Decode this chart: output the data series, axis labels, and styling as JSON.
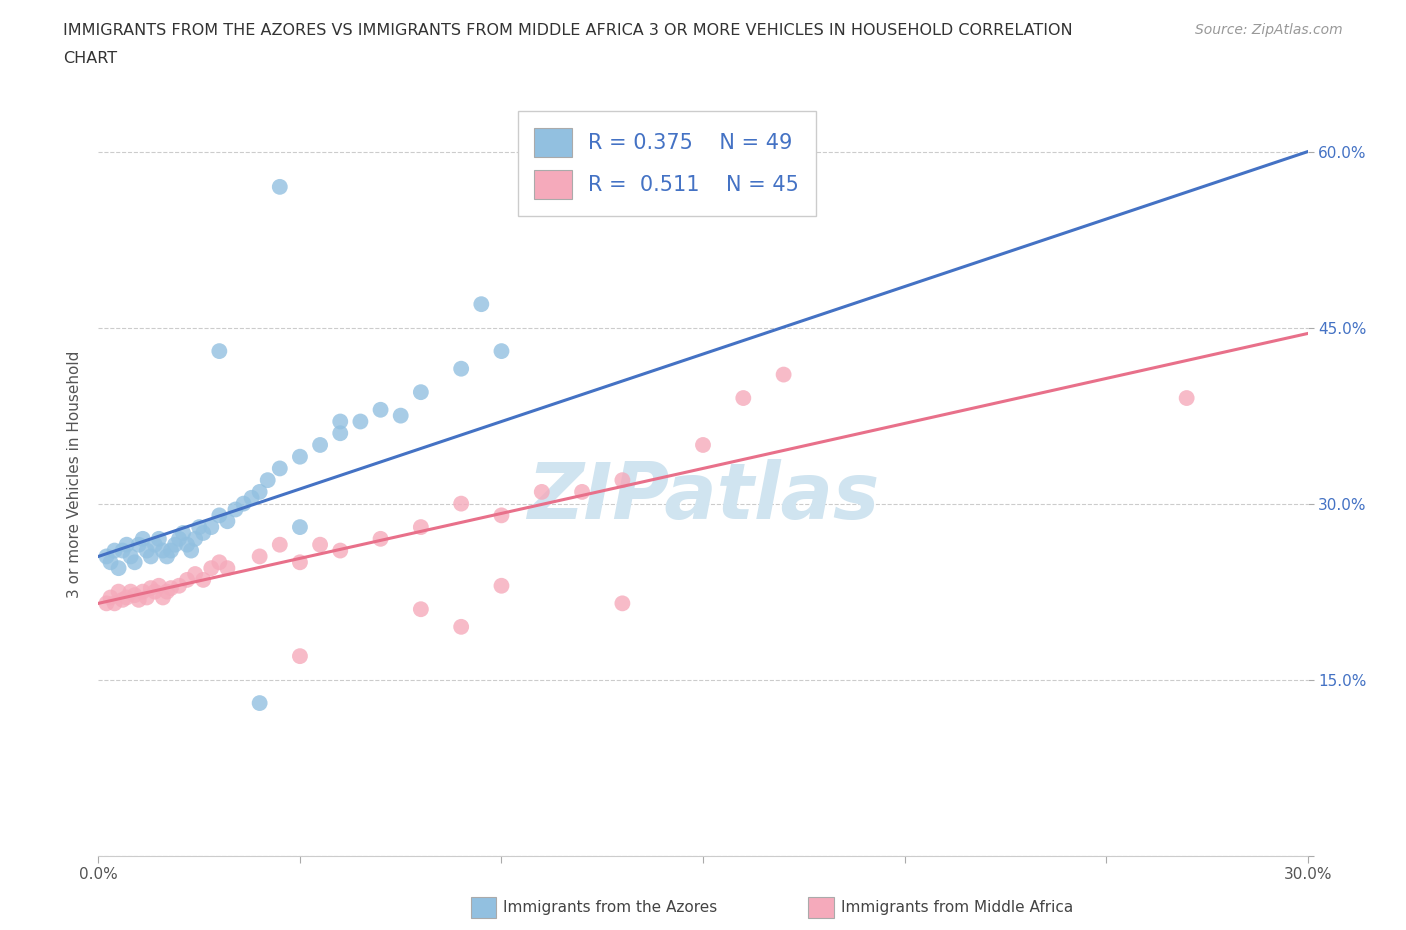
{
  "title_line1": "IMMIGRANTS FROM THE AZORES VS IMMIGRANTS FROM MIDDLE AFRICA 3 OR MORE VEHICLES IN HOUSEHOLD CORRELATION",
  "title_line2": "CHART",
  "source": "Source: ZipAtlas.com",
  "ylabel": "3 or more Vehicles in Household",
  "xlim": [
    0.0,
    0.3
  ],
  "ylim": [
    0.0,
    0.65
  ],
  "xtick_positions": [
    0.0,
    0.05,
    0.1,
    0.15,
    0.2,
    0.25,
    0.3
  ],
  "xtick_labels_sparse": {
    "0": "0.0%",
    "6": "30.0%"
  },
  "ytick_positions": [
    0.0,
    0.15,
    0.3,
    0.45,
    0.6
  ],
  "ytick_labels_right": [
    "",
    "15.0%",
    "30.0%",
    "45.0%",
    "60.0%"
  ],
  "R_azores": 0.375,
  "N_azores": 49,
  "R_africa": 0.511,
  "N_africa": 45,
  "color_azores": "#92C0E0",
  "color_africa": "#F5AABB",
  "trend_color_azores": "#4472C4",
  "trend_color_africa": "#E8708A",
  "tick_label_color": "#4472C4",
  "watermark": "ZIPatlas",
  "watermark_color": "#D0E4F0",
  "background_color": "#FFFFFF",
  "grid_color": "#CCCCCC",
  "azores_x": [
    0.002,
    0.003,
    0.004,
    0.005,
    0.006,
    0.007,
    0.008,
    0.009,
    0.01,
    0.011,
    0.012,
    0.013,
    0.014,
    0.015,
    0.016,
    0.017,
    0.018,
    0.019,
    0.02,
    0.021,
    0.022,
    0.023,
    0.024,
    0.025,
    0.026,
    0.028,
    0.03,
    0.032,
    0.034,
    0.036,
    0.038,
    0.04,
    0.042,
    0.045,
    0.05,
    0.055,
    0.06,
    0.065,
    0.07,
    0.075,
    0.08,
    0.09,
    0.1,
    0.03,
    0.05,
    0.06,
    0.04,
    0.045,
    0.095
  ],
  "azores_y": [
    0.255,
    0.25,
    0.26,
    0.245,
    0.26,
    0.265,
    0.255,
    0.25,
    0.265,
    0.27,
    0.26,
    0.255,
    0.265,
    0.27,
    0.26,
    0.255,
    0.26,
    0.265,
    0.27,
    0.275,
    0.265,
    0.26,
    0.27,
    0.28,
    0.275,
    0.28,
    0.29,
    0.285,
    0.295,
    0.3,
    0.305,
    0.31,
    0.32,
    0.33,
    0.34,
    0.35,
    0.36,
    0.37,
    0.38,
    0.375,
    0.395,
    0.415,
    0.43,
    0.43,
    0.28,
    0.37,
    0.13,
    0.57,
    0.47
  ],
  "africa_x": [
    0.002,
    0.003,
    0.004,
    0.005,
    0.006,
    0.007,
    0.008,
    0.009,
    0.01,
    0.011,
    0.012,
    0.013,
    0.014,
    0.015,
    0.016,
    0.017,
    0.018,
    0.02,
    0.022,
    0.024,
    0.026,
    0.028,
    0.03,
    0.032,
    0.04,
    0.045,
    0.05,
    0.055,
    0.06,
    0.07,
    0.08,
    0.09,
    0.1,
    0.11,
    0.12,
    0.13,
    0.15,
    0.16,
    0.17,
    0.09,
    0.13,
    0.05,
    0.08,
    0.1,
    0.27
  ],
  "africa_y": [
    0.215,
    0.22,
    0.215,
    0.225,
    0.218,
    0.22,
    0.225,
    0.222,
    0.218,
    0.225,
    0.22,
    0.228,
    0.225,
    0.23,
    0.22,
    0.225,
    0.228,
    0.23,
    0.235,
    0.24,
    0.235,
    0.245,
    0.25,
    0.245,
    0.255,
    0.265,
    0.25,
    0.265,
    0.26,
    0.27,
    0.28,
    0.3,
    0.29,
    0.31,
    0.31,
    0.32,
    0.35,
    0.39,
    0.41,
    0.195,
    0.215,
    0.17,
    0.21,
    0.23,
    0.39
  ]
}
